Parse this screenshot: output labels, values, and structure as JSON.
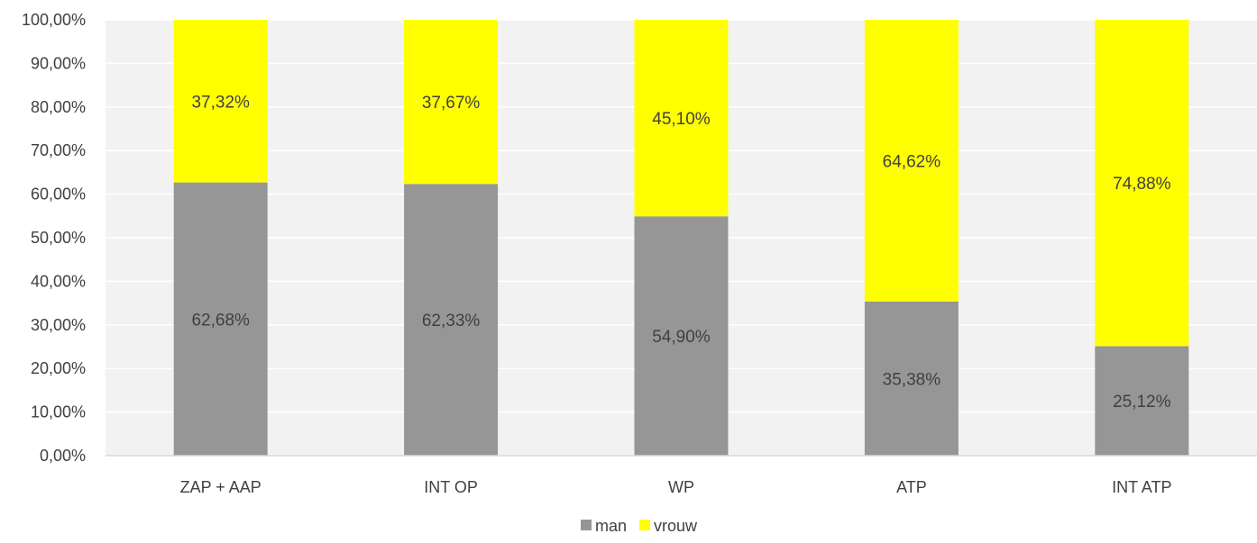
{
  "chart_data": {
    "type": "bar",
    "stacked": true,
    "categories": [
      "ZAP + AAP",
      "INT OP",
      "WP",
      "ATP",
      "INT ATP"
    ],
    "series": [
      {
        "name": "man",
        "color": "#969696",
        "values": [
          62.68,
          62.33,
          54.9,
          35.38,
          25.12
        ],
        "labels": [
          "62,68%",
          "62,33%",
          "54,90%",
          "35,38%",
          "25,12%"
        ]
      },
      {
        "name": "vrouw",
        "color": "#FFFF00",
        "values": [
          37.32,
          37.67,
          45.1,
          64.62,
          74.88
        ],
        "labels": [
          "37,32%",
          "37,67%",
          "45,10%",
          "64,62%",
          "74,88%"
        ]
      }
    ],
    "ylim": [
      0,
      100
    ],
    "yticks": [
      0,
      10,
      20,
      30,
      40,
      50,
      60,
      70,
      80,
      90,
      100
    ],
    "ytick_labels": [
      "0,00%",
      "10,00%",
      "20,00%",
      "30,00%",
      "40,00%",
      "50,00%",
      "60,00%",
      "70,00%",
      "80,00%",
      "90,00%",
      "100,00%"
    ],
    "grid": true,
    "legend_position": "bottom",
    "plot_background": "#F2F2F2",
    "gridline_color": "#FFFFFF",
    "axis_color": "#D9D9D9",
    "text_color": "#404040"
  }
}
